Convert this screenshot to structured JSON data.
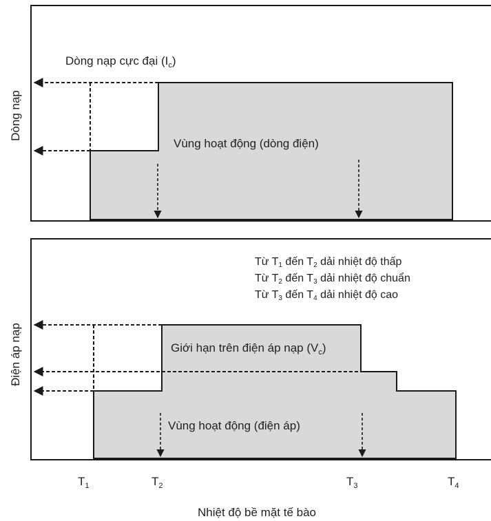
{
  "top_panel": {
    "y_label": "Dòng nạp",
    "max_current_label": "Dòng nạp cực đại (I",
    "max_current_sub": "c",
    "max_current_close": ")",
    "region_label": "Vùng hoạt động (dòng điện)"
  },
  "bottom_panel": {
    "y_label": "Điện áp nạp",
    "legend": [
      {
        "pre": "Từ T",
        "a": "1",
        "mid": " đến T",
        "b": "2",
        "post": " dải nhiệt độ thấp"
      },
      {
        "pre": "Từ T",
        "a": "2",
        "mid": " đến T",
        "b": "3",
        "post": " dải nhiệt độ chuẩn"
      },
      {
        "pre": "Từ T",
        "a": "3",
        "mid": " đến T",
        "b": "4",
        "post": " dải nhiệt độ cao"
      }
    ],
    "limit_label": "Giới hạn trên điện áp nạp (V",
    "limit_sub": "c",
    "limit_close": ")",
    "region_label": "Vùng hoạt động (điện áp)"
  },
  "x_axis": {
    "title": "Nhiệt độ bề mặt tế bào",
    "ticks": [
      {
        "base": "T",
        "sub": "1"
      },
      {
        "base": "T",
        "sub": "2"
      },
      {
        "base": "T",
        "sub": "3"
      },
      {
        "base": "T",
        "sub": "4"
      }
    ]
  },
  "colors": {
    "region_fill": "#d9d9d9",
    "line": "#1a1a1a"
  }
}
